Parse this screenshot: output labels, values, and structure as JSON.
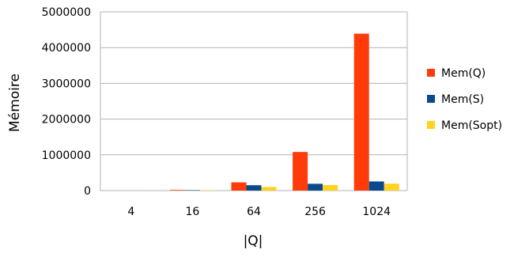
{
  "chart_data": {
    "type": "bar",
    "title": "",
    "xlabel": "|Q|",
    "ylabel": "Mémoire",
    "categories": [
      "4",
      "16",
      "64",
      "256",
      "1024"
    ],
    "series": [
      {
        "name": "Mem(Q)",
        "color": "#ff3b0a",
        "values": [
          300,
          17000,
          230000,
          1080000,
          4390000
        ]
      },
      {
        "name": "Mem(S)",
        "color": "#0a4a8c",
        "values": [
          200,
          12000,
          150000,
          190000,
          255000
        ]
      },
      {
        "name": "Mem(Sopt)",
        "color": "#ffd320",
        "values": [
          150,
          10000,
          100000,
          155000,
          195000
        ]
      }
    ],
    "ylim": [
      0,
      5000000
    ],
    "yticks": [
      "0",
      "1000000",
      "2000000",
      "3000000",
      "4000000",
      "5000000"
    ],
    "grid": true,
    "legend_position": "right"
  }
}
